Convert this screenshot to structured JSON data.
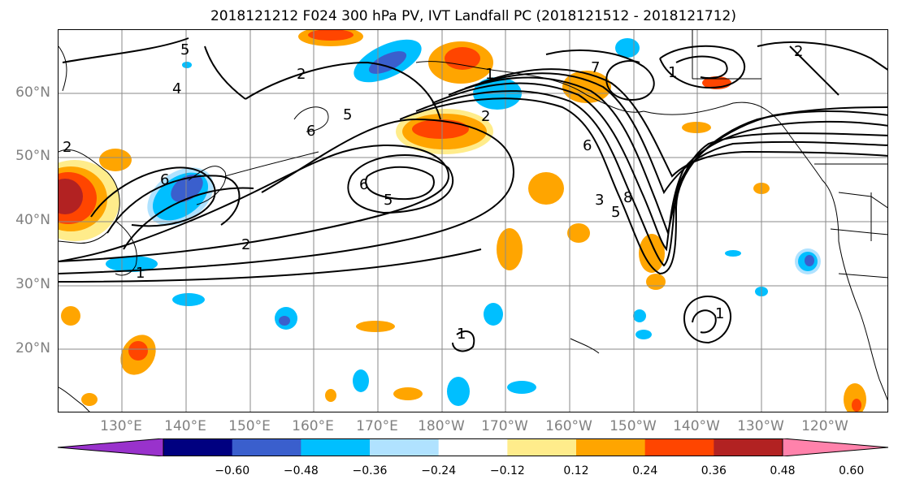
{
  "title": "2018121212 F024 300 hPa PV, IVT Landfall PC (2018121512 - 2018121712)",
  "lat_labels": [
    "60°N",
    "50°N",
    "40°N",
    "30°N",
    "20°N"
  ],
  "lon_labels": [
    "130°E",
    "140°E",
    "150°E",
    "160°E",
    "170°E",
    "180°W",
    "170°W",
    "160°W",
    "150°W",
    "140°W",
    "130°W",
    "120°W"
  ],
  "contour_labels": [
    "2",
    "4",
    "6",
    "2",
    "5",
    "1",
    "2",
    "5",
    "6",
    "6",
    "5",
    "2",
    "1",
    "7",
    "1",
    "6",
    "8",
    "3",
    "5",
    "2",
    "1",
    "1"
  ],
  "colorbar": {
    "ticks": [
      "−0.60",
      "−0.48",
      "−0.36",
      "−0.24",
      "−0.12",
      "0.12",
      "0.24",
      "0.36",
      "0.48",
      "0.60"
    ],
    "colors": [
      "#9932cc",
      "#000080",
      "#3a5fcd",
      "#00bfff",
      "#b0e2ff",
      "#ffffff",
      "#ffec8b",
      "#ffa500",
      "#ff4500",
      "#b22222",
      "#ff82ab"
    ]
  }
}
